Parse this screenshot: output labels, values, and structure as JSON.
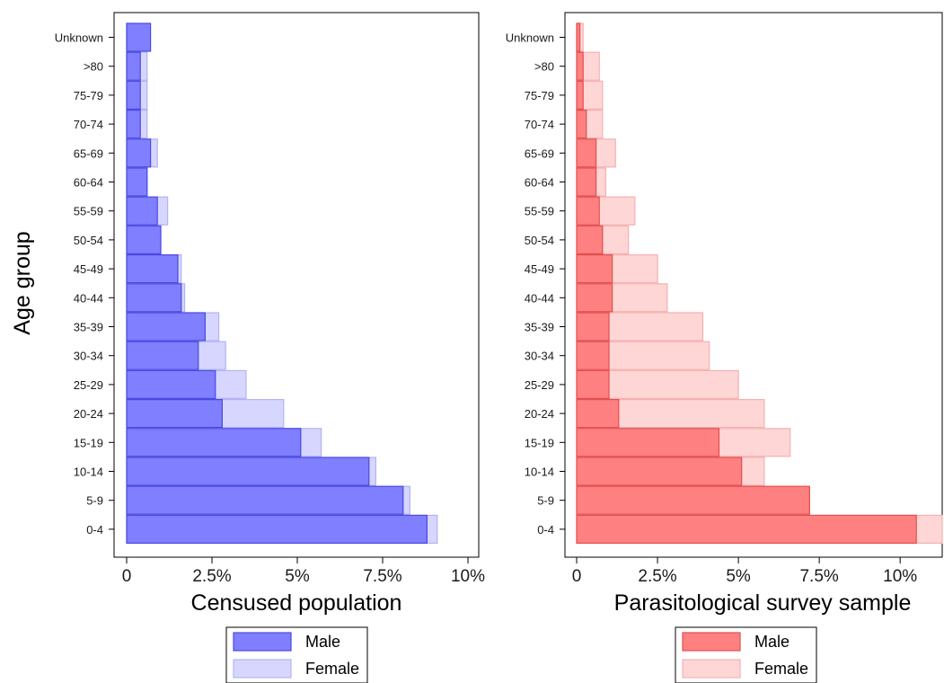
{
  "ylabel": "Age group",
  "legend": {
    "male_label": "Male",
    "female_label": "Female"
  },
  "chart_data": [
    {
      "type": "bar",
      "orientation": "horizontal",
      "title": "",
      "xlabel": "Censused population",
      "ylabel": "Age group",
      "categories": [
        "0-4",
        "5-9",
        "10-14",
        "15-19",
        "20-24",
        "25-29",
        "30-34",
        "35-39",
        "40-44",
        "45-49",
        "50-54",
        "55-59",
        "60-64",
        "65-69",
        "70-74",
        "75-79",
        ">80",
        "Unknown"
      ],
      "series": [
        {
          "name": "Male",
          "color": "#7f7fff",
          "edge": "#4a4ae0",
          "values": [
            8.8,
            8.1,
            7.1,
            5.1,
            2.8,
            2.6,
            2.1,
            2.3,
            1.6,
            1.5,
            1.0,
            0.9,
            0.6,
            0.7,
            0.4,
            0.4,
            0.4,
            0.7
          ]
        },
        {
          "name": "Female",
          "color": "#d6d6ff",
          "edge": "#b3b3f5",
          "values": [
            9.1,
            8.3,
            7.3,
            5.7,
            4.6,
            3.5,
            2.9,
            2.7,
            1.7,
            1.6,
            1.0,
            1.2,
            0.6,
            0.9,
            0.6,
            0.6,
            0.6,
            0.3
          ]
        }
      ],
      "xlim": [
        0,
        10
      ],
      "xticks": [
        "0",
        "2.5%",
        "5%",
        "7.5%",
        "10%"
      ],
      "xtick_values": [
        0,
        2.5,
        5,
        7.5,
        10
      ],
      "legend_position": "bottom"
    },
    {
      "type": "bar",
      "orientation": "horizontal",
      "title": "",
      "xlabel": "Parasitological survey sample",
      "ylabel": "",
      "categories": [
        "0-4",
        "5-9",
        "10-14",
        "15-19",
        "20-24",
        "25-29",
        "30-34",
        "35-39",
        "40-44",
        "45-49",
        "50-54",
        "55-59",
        "60-64",
        "65-69",
        "70-74",
        "75-79",
        ">80",
        "Unknown"
      ],
      "series": [
        {
          "name": "Male",
          "color": "#ff8080",
          "edge": "#e05050",
          "values": [
            10.5,
            7.2,
            5.1,
            4.4,
            1.3,
            1.0,
            1.0,
            1.0,
            1.1,
            1.1,
            0.8,
            0.7,
            0.6,
            0.6,
            0.3,
            0.2,
            0.2,
            0.1
          ]
        },
        {
          "name": "Female",
          "color": "#ffd6d6",
          "edge": "#f5b0b0",
          "values": [
            11.3,
            7.2,
            5.8,
            6.6,
            5.8,
            5.0,
            4.1,
            3.9,
            2.8,
            2.5,
            1.6,
            1.8,
            0.9,
            1.2,
            0.8,
            0.8,
            0.7,
            0.2
          ]
        }
      ],
      "xlim": [
        0,
        11.3
      ],
      "xticks": [
        "0",
        "2.5%",
        "5%",
        "7.5%",
        "10%"
      ],
      "xtick_values": [
        0,
        2.5,
        5,
        7.5,
        10
      ],
      "legend_position": "bottom"
    }
  ]
}
